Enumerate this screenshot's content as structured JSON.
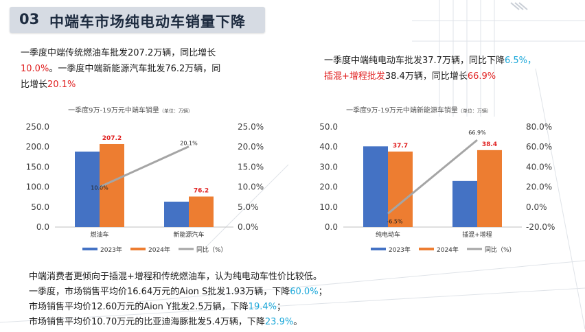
{
  "title": {
    "number": "03",
    "text": "中端车市场纯电动车销量下降"
  },
  "left_text": {
    "line1_a": "一季度中端传统燃油车批发207.2万辆，同比增长",
    "line2_red": "10.0%",
    "line2_b": "。一季度中端新能源汽车批发76.2万辆，同",
    "line3_a": "比增长",
    "line3_red": "20.1%"
  },
  "right_text": {
    "line1_a": "一季度中端纯电动车批发37.7万辆，同比下降",
    "line1_cyan": "6.5%，",
    "line2_red": "插混+增程批发",
    "line2_b": "38.4万辆，同比增长",
    "line2_red2": "66.9%"
  },
  "bottom_text": {
    "l1": "中端消费者更倾向于插混+增程和传统燃油车，认为纯电动车性价比较低。",
    "l2a": "一季度，市场销售平均价16.64万元的Aion S批发1.93万辆，下降",
    "l2c": "60.0%",
    "l2b": "；",
    "l3a": "市场销售平均价12.60万元的Aion Y批发2.5万辆，下降",
    "l3c": "19.4%",
    "l3b": "；",
    "l4a": "市场销售平均价10.70万元的比亚迪海豚批发5.4万辆，下降",
    "l4c": "23.9%",
    "l4b": "。"
  },
  "colors": {
    "s2023": "#4472c4",
    "s2024": "#ed7d31",
    "yoy": "#a5a5a5",
    "label_red": "#e02020"
  },
  "chart_data": [
    {
      "type": "bar",
      "title": "一季度9万-19万元中端车销量",
      "unit": "（单位：万辆）",
      "categories": [
        "燃油车",
        "新能源汽车"
      ],
      "series": [
        {
          "name": "2023年",
          "values": [
            188.4,
            63.4
          ]
        },
        {
          "name": "2024年",
          "values": [
            207.2,
            76.2
          ]
        }
      ],
      "line_series": {
        "name": "同比（%）",
        "values": [
          10.0,
          20.1
        ],
        "labels": [
          "10.0%",
          "20.1%"
        ]
      },
      "bar_labels": [
        "207.2",
        "76.2"
      ],
      "ylim": [
        0,
        250
      ],
      "y_ticks": [
        "0.0",
        "50.0",
        "100.0",
        "150.0",
        "200.0",
        "250.0"
      ],
      "y2lim": [
        0,
        25
      ],
      "y2_ticks": [
        "0.0%",
        "5.0%",
        "10.0%",
        "15.0%",
        "20.0%",
        "25.0%"
      ],
      "legend": [
        "2023年",
        "2024年",
        "同比（%）"
      ],
      "legend_position": "bottom"
    },
    {
      "type": "bar",
      "title": "一季度9万-19万元中端新能源车销量",
      "unit": "（单位：万辆）",
      "categories": [
        "纯电动车",
        "插混+增程"
      ],
      "series": [
        {
          "name": "2023年",
          "values": [
            40.3,
            23.0
          ]
        },
        {
          "name": "2024年",
          "values": [
            37.7,
            38.4
          ]
        }
      ],
      "line_series": {
        "name": "同比（%）",
        "values": [
          -6.5,
          66.9
        ],
        "labels": [
          "-6.5%",
          "66.9%"
        ]
      },
      "bar_labels": [
        "37.7",
        "38.4"
      ],
      "ylim": [
        0,
        50
      ],
      "y_ticks": [
        "0.0",
        "10.0",
        "20.0",
        "30.0",
        "40.0",
        "50.0"
      ],
      "y2lim": [
        -20,
        80
      ],
      "y2_ticks": [
        "-20.0%",
        "0.0%",
        "20.0%",
        "40.0%",
        "60.0%",
        "80.0%"
      ],
      "legend": [
        "2023年",
        "2024年",
        "同比（%）"
      ],
      "legend_position": "bottom"
    }
  ]
}
